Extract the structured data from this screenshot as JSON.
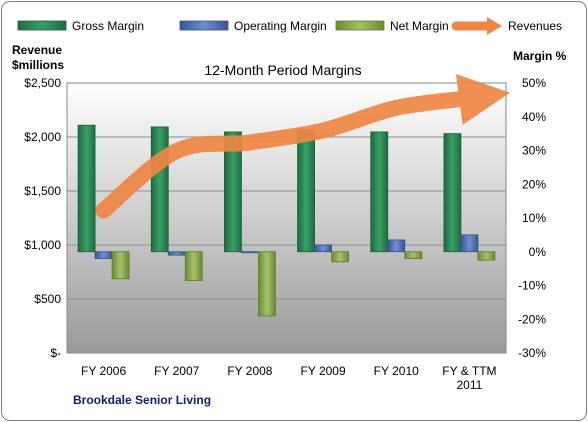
{
  "chart_data": {
    "type": "bar",
    "title": "12-Month Period Margins",
    "footer": "Brookdale Senior Living",
    "left_axis_title": [
      "Revenue",
      "$millions"
    ],
    "right_axis_title": "Margin %",
    "categories": [
      [
        "FY 2006"
      ],
      [
        "FY 2007"
      ],
      [
        "FY 2008"
      ],
      [
        "FY 2009"
      ],
      [
        "FY 2010"
      ],
      [
        "FY & TTM",
        "2011"
      ]
    ],
    "left_ticks": [
      "$2,500",
      "$2,000",
      "$1,500",
      "$1,000",
      "$500",
      "$-"
    ],
    "right_ticks": [
      "50%",
      "40%",
      "30%",
      "20%",
      "10%",
      "0%",
      "-10%",
      "-20%",
      "-30%"
    ],
    "ylim_left": [
      0,
      2500
    ],
    "ylim_right": [
      -30,
      50
    ],
    "bar_axis": "right",
    "line_axis": "left",
    "series": [
      {
        "name": "Gross Margin",
        "kind": "bar",
        "color": "#2e8b57",
        "values": [
          37.5,
          37,
          35.5,
          36,
          35.5,
          35
        ]
      },
      {
        "name": "Operating Margin",
        "kind": "bar",
        "color": "#4f6fb8",
        "values": [
          -2,
          -1,
          -0.3,
          2,
          3.5,
          5
        ]
      },
      {
        "name": "Net Margin",
        "kind": "bar",
        "color": "#8aaa4f",
        "values": [
          -8,
          -8.5,
          -19,
          -3,
          -2,
          -2.5
        ]
      },
      {
        "name": "Revenues",
        "kind": "line",
        "color": "#ee8744",
        "values": [
          1320,
          1870,
          1950,
          2060,
          2270,
          2360
        ]
      }
    ],
    "grid": true,
    "legend_position": "top"
  }
}
